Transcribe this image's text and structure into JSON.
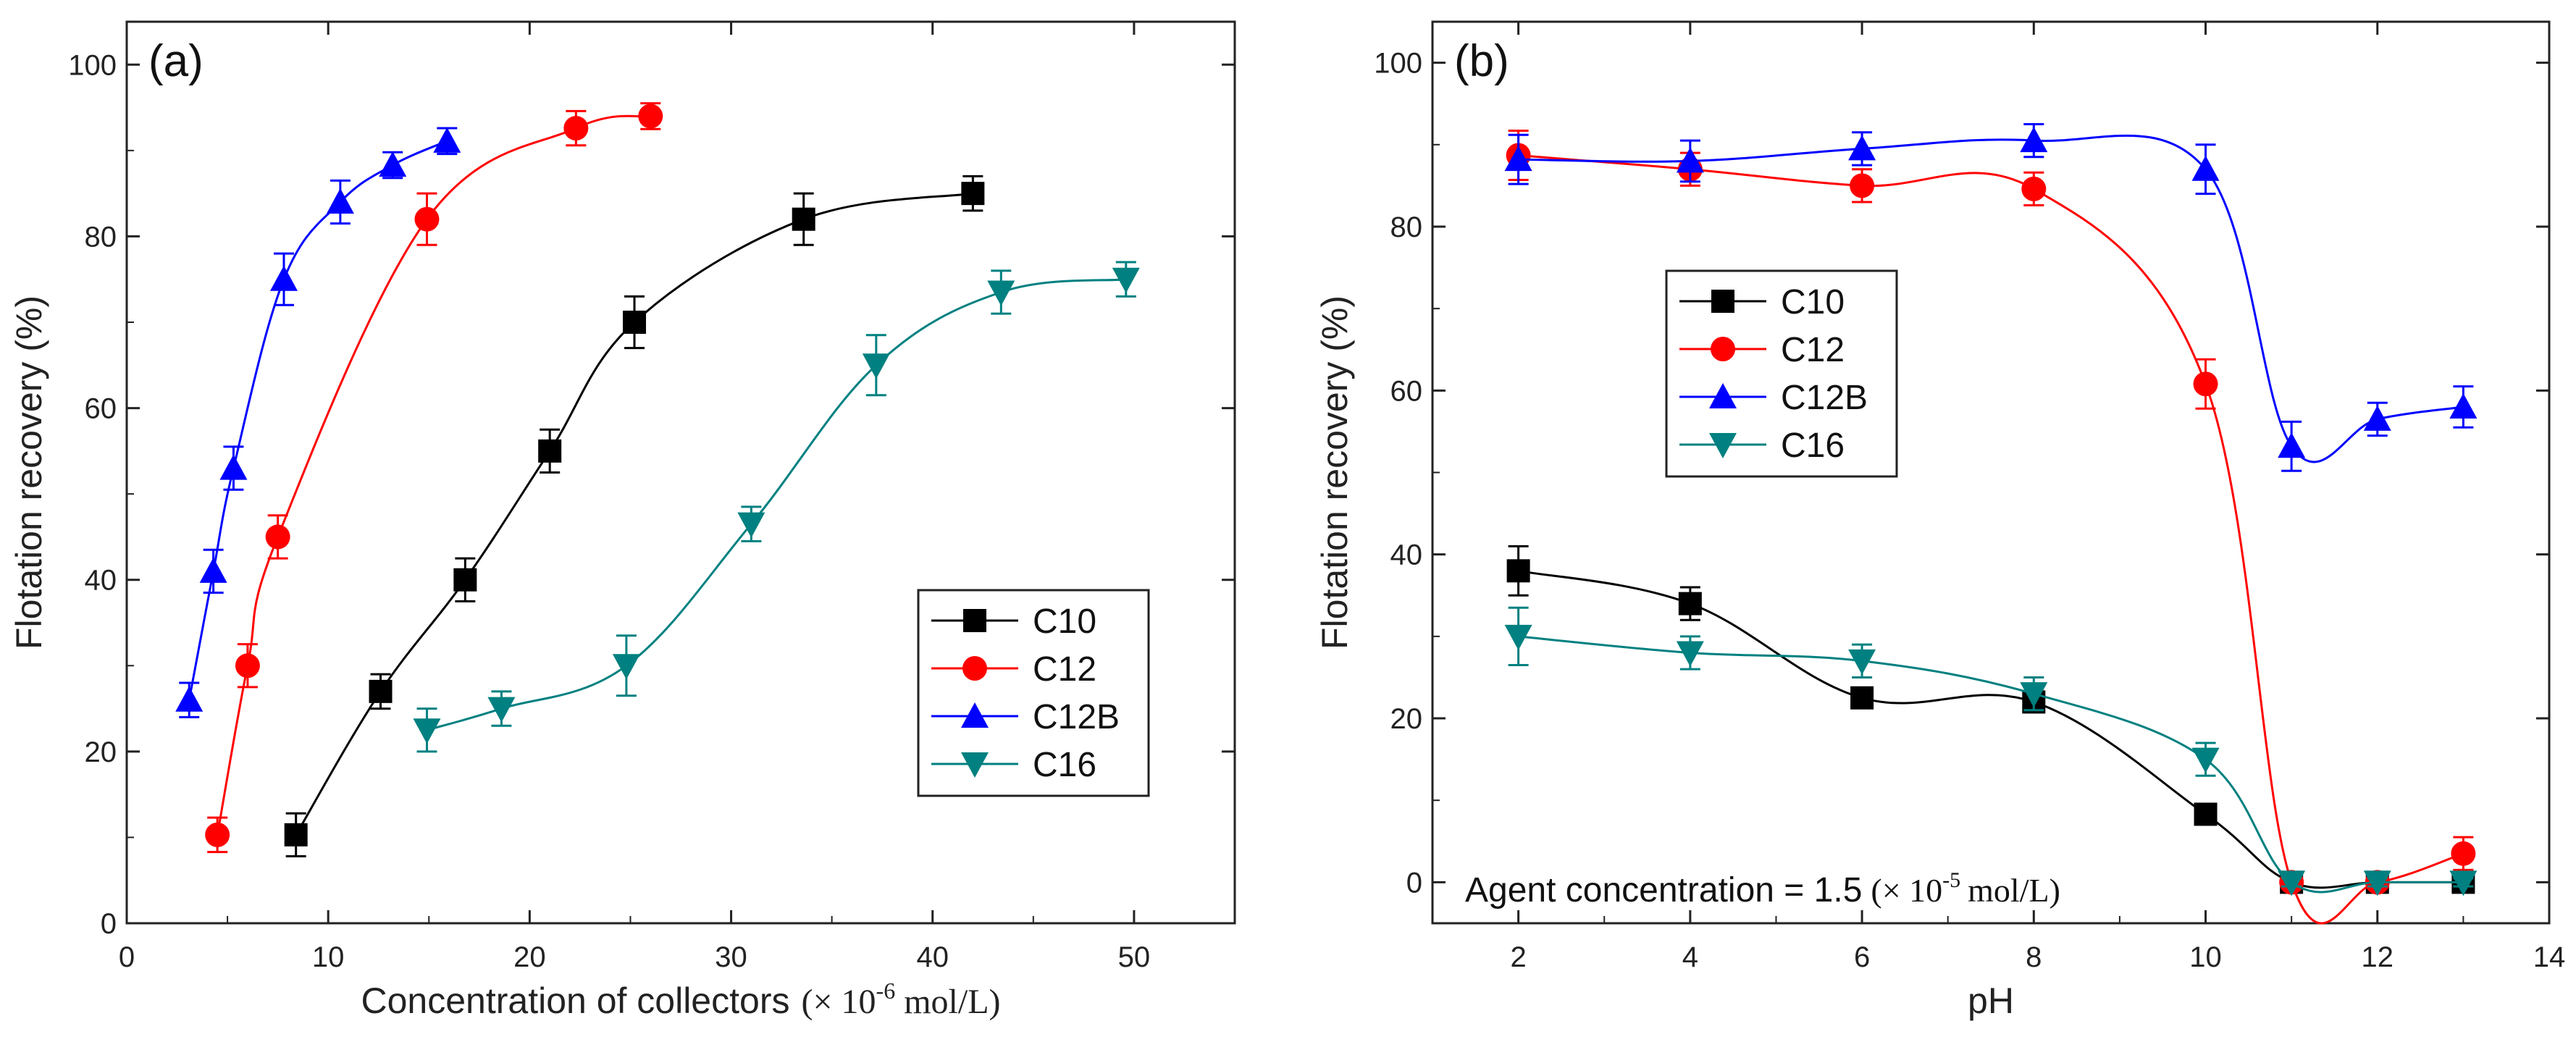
{
  "chart_data": [
    {
      "id": "a",
      "type": "scatter",
      "panel_label": "(a)",
      "title": "",
      "xlabel": "Concentration of collectors",
      "xlabel_unit": "(× 10",
      "xlabel_exp": "-6",
      "xlabel_unit_tail": "mol/L)",
      "ylabel": "Flotation recovery (%)",
      "xlim": [
        0,
        55
      ],
      "ylim": [
        0,
        105
      ],
      "xticks": [
        0,
        10,
        20,
        30,
        40,
        50
      ],
      "yticks": [
        0,
        20,
        40,
        60,
        80,
        100
      ],
      "legend_position": "bottom-right",
      "series": [
        {
          "name": "C10",
          "color": "#000000",
          "marker": "square",
          "x": [
            8.4,
            12.6,
            16.8,
            21,
            25.2,
            33.6,
            42
          ],
          "y": [
            10.3,
            27,
            40,
            55,
            70,
            82,
            85
          ],
          "err": [
            2.5,
            2,
            2.5,
            2.5,
            3,
            3,
            2
          ]
        },
        {
          "name": "C12",
          "color": "#ff0000",
          "marker": "circle",
          "x": [
            4.5,
            6,
            7.5,
            14.9,
            22.3,
            26
          ],
          "y": [
            10.3,
            30,
            45,
            82,
            92.6,
            94
          ],
          "err": [
            2,
            2.5,
            2.5,
            3,
            2,
            1.5
          ]
        },
        {
          "name": "C12B",
          "color": "#0000ff",
          "marker": "triangle-up",
          "x": [
            3.1,
            4.3,
            5.3,
            7.8,
            10.6,
            13.2,
            15.9
          ],
          "y": [
            26,
            41,
            53,
            75,
            84,
            88.3,
            91.1
          ],
          "err": [
            2,
            2.5,
            2.5,
            3,
            2.5,
            1.5,
            1.5
          ]
        },
        {
          "name": "C16",
          "color": "#008080",
          "marker": "triangle-down",
          "x": [
            14.9,
            18.6,
            24.8,
            31,
            37.2,
            43.4,
            49.6
          ],
          "y": [
            22.5,
            25,
            30,
            46.5,
            65,
            73.5,
            75
          ],
          "err": [
            2.5,
            2,
            3.5,
            2,
            3.5,
            2.5,
            2
          ]
        }
      ]
    },
    {
      "id": "b",
      "type": "scatter",
      "panel_label": "(b)",
      "title": "",
      "xlabel": "pH",
      "ylabel": "Flotation recovery (%)",
      "xlim": [
        1,
        14
      ],
      "ylim": [
        -5,
        105
      ],
      "xticks": [
        2,
        4,
        6,
        8,
        10,
        12,
        14
      ],
      "yticks": [
        0,
        20,
        40,
        60,
        80,
        100
      ],
      "legend_position": "center-left",
      "annotation": "Agent concentration = 1.5",
      "annotation_unit": "(× 10",
      "annotation_exp": "-5",
      "annotation_unit_tail": "mol/L)",
      "series": [
        {
          "name": "C10",
          "color": "#000000",
          "marker": "square",
          "x": [
            2,
            4,
            6,
            8,
            10,
            11,
            12,
            13
          ],
          "y": [
            38,
            34,
            22.5,
            22,
            8.3,
            0,
            0,
            0
          ],
          "err": [
            3,
            2,
            1,
            1,
            1,
            0.5,
            0.5,
            0.5
          ]
        },
        {
          "name": "C12",
          "color": "#ff0000",
          "marker": "circle",
          "x": [
            2,
            4,
            6,
            8,
            10,
            11,
            12,
            13
          ],
          "y": [
            88.7,
            87,
            85,
            84.6,
            60.8,
            0,
            0,
            3.5
          ],
          "err": [
            3,
            2,
            2,
            2,
            3,
            0.5,
            0.5,
            2
          ]
        },
        {
          "name": "C12B",
          "color": "#0000ff",
          "marker": "triangle-up",
          "x": [
            2,
            4,
            6,
            8,
            10,
            11,
            12,
            13
          ],
          "y": [
            88.2,
            88,
            89.5,
            90.5,
            87,
            53.2,
            56.5,
            58
          ],
          "err": [
            3,
            2.5,
            2,
            2,
            3,
            3,
            2,
            2.5
          ]
        },
        {
          "name": "C16",
          "color": "#008080",
          "marker": "triangle-down",
          "x": [
            2,
            4,
            6,
            8,
            10,
            11,
            12,
            13
          ],
          "y": [
            30,
            28,
            27,
            23,
            15,
            0,
            0,
            0
          ],
          "err": [
            3.5,
            2,
            2,
            2,
            2,
            0.5,
            0.5,
            0.5
          ]
        }
      ]
    }
  ]
}
